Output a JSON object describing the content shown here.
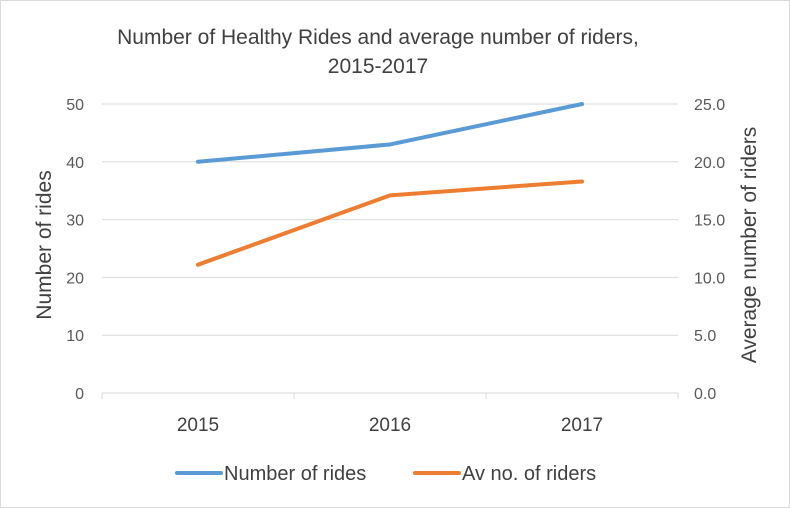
{
  "chart_data": {
    "type": "line",
    "title_line1": "Number of Healthy Rides and average number of riders,",
    "title_line2": "2015-2017",
    "categories": [
      "2015",
      "2016",
      "2017"
    ],
    "y_left": {
      "label": "Number of rides",
      "min": 0,
      "max": 50,
      "step": 10,
      "ticks": [
        "0",
        "10",
        "20",
        "30",
        "40",
        "50"
      ]
    },
    "y_right": {
      "label": "Average number of riders",
      "min": 0,
      "max": 25,
      "step": 5,
      "ticks": [
        "0.0",
        "5.0",
        "10.0",
        "15.0",
        "20.0",
        "25.0"
      ]
    },
    "series": [
      {
        "name": "Number of rides",
        "axis": "left",
        "color": "#5b9bd5",
        "values": [
          40,
          43,
          50
        ]
      },
      {
        "name": "Av no. of riders",
        "axis": "right",
        "color": "#ed7d31",
        "values": [
          11.1,
          17.1,
          18.3
        ]
      }
    ],
    "gridlines": true,
    "legend_position": "bottom"
  }
}
